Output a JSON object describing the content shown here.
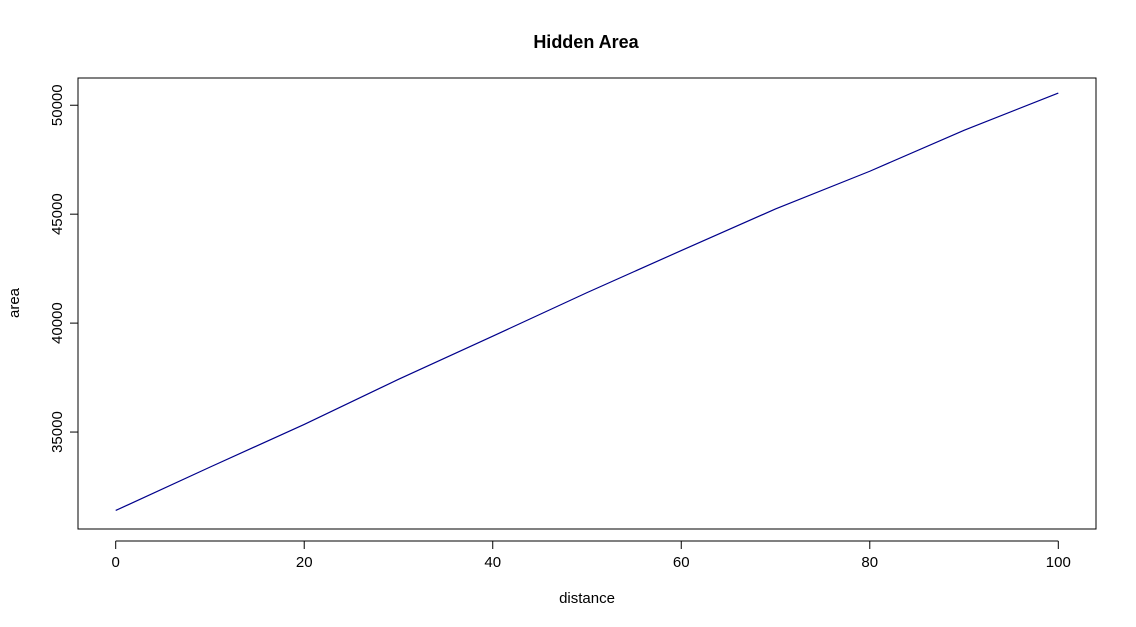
{
  "chart_data": {
    "type": "line",
    "title": "Hidden Area",
    "xlabel": "distance",
    "ylabel": "area",
    "xlim": [
      -4,
      104
    ],
    "ylim": [
      30550,
      51250
    ],
    "x_ticks": [
      0,
      20,
      40,
      60,
      80,
      100
    ],
    "y_ticks": [
      35000,
      40000,
      45000,
      50000
    ],
    "grid": false,
    "legend": "none",
    "line_color": "#00008B",
    "series": [
      {
        "x": [
          0,
          10,
          20,
          30,
          40,
          50,
          60,
          70,
          80,
          90,
          100
        ],
        "values": [
          31400,
          33390,
          35350,
          37420,
          39400,
          41400,
          43330,
          45240,
          46970,
          48850,
          50560
        ]
      }
    ]
  }
}
